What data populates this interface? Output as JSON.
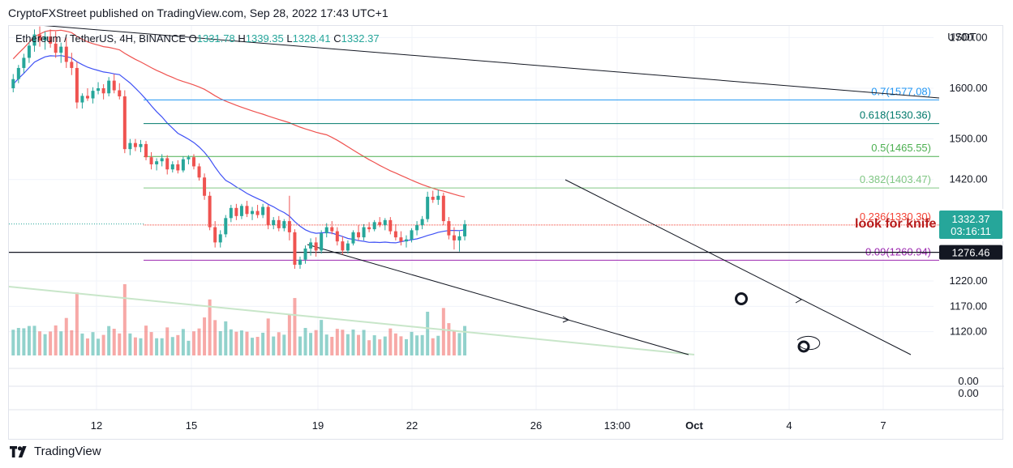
{
  "caption": "CryptoFXStreet published on TradingView.com, Sep 28, 2022 17:43 UTC+1",
  "footer": {
    "brand": "TradingView",
    "logo_icon": "tradingview-logo-icon"
  },
  "chart_data": {
    "type": "candlestick",
    "legend": {
      "symbol": "Ethereum / TetherUS, 4H, BINANCE",
      "o_label": "O",
      "o": "1331.78",
      "h_label": "H",
      "h": "1339.35",
      "l_label": "L",
      "l": "1328.41",
      "c_label": "C",
      "c": "1332.37"
    },
    "currency_label": "USDT",
    "y_ticks": [
      "1700.00",
      "1600.00",
      "1500.00",
      "1420.00",
      "1220.00",
      "1170.00",
      "1120.00"
    ],
    "volume_pane_ticks": [
      "0.00",
      "0.00"
    ],
    "x_ticks": [
      "12",
      "15",
      "19",
      "22",
      "26",
      "13:00",
      "Oct",
      "4",
      "7"
    ],
    "price_label": {
      "value": "1332.37",
      "countdown": "03:16:11",
      "color": "#26a69a"
    },
    "horizontal_level_label": "1276.46",
    "fib_levels": [
      {
        "ratio": "0.7",
        "price": "1577.08",
        "label": "0.7(1577.08)",
        "color": "#2196f3"
      },
      {
        "ratio": "0.618",
        "price": "1530.36",
        "label": "0.618(1530.36)",
        "color": "#00796b"
      },
      {
        "ratio": "0.5",
        "price": "1465.55",
        "label": "0.5(1465.55)",
        "color": "#4caf50"
      },
      {
        "ratio": "0.382",
        "price": "1403.47",
        "label": "0.382(1403.47)",
        "color": "#81c784"
      },
      {
        "ratio": "0.236",
        "price": "1330.30",
        "label": "0.236(1330.30)",
        "color": "#f44336"
      },
      {
        "ratio": "0.09",
        "price": "1260.94",
        "label": "0.09(1260.94)",
        "color": "#9c27b0"
      }
    ],
    "annotation": {
      "text": "look for knife",
      "color": "#b71c1c"
    },
    "ma_fast_color": "#3f51f5",
    "ma_slow_color": "#ef5350",
    "up_color": "#26a69a",
    "down_color": "#ef5350",
    "candles": [
      {
        "o": 1600,
        "h": 1628,
        "l": 1592,
        "c": 1618
      },
      {
        "o": 1618,
        "h": 1646,
        "l": 1610,
        "c": 1640
      },
      {
        "o": 1640,
        "h": 1668,
        "l": 1630,
        "c": 1660
      },
      {
        "o": 1660,
        "h": 1690,
        "l": 1650,
        "c": 1684
      },
      {
        "o": 1684,
        "h": 1716,
        "l": 1672,
        "c": 1706
      },
      {
        "o": 1706,
        "h": 1722,
        "l": 1682,
        "c": 1694
      },
      {
        "o": 1694,
        "h": 1712,
        "l": 1676,
        "c": 1702
      },
      {
        "o": 1702,
        "h": 1716,
        "l": 1680,
        "c": 1688
      },
      {
        "o": 1688,
        "h": 1712,
        "l": 1660,
        "c": 1670
      },
      {
        "o": 1670,
        "h": 1690,
        "l": 1650,
        "c": 1682
      },
      {
        "o": 1682,
        "h": 1700,
        "l": 1640,
        "c": 1652
      },
      {
        "o": 1652,
        "h": 1670,
        "l": 1626,
        "c": 1640
      },
      {
        "o": 1640,
        "h": 1652,
        "l": 1560,
        "c": 1572
      },
      {
        "o": 1572,
        "h": 1590,
        "l": 1560,
        "c": 1585
      },
      {
        "o": 1585,
        "h": 1600,
        "l": 1575,
        "c": 1580
      },
      {
        "o": 1580,
        "h": 1602,
        "l": 1570,
        "c": 1595
      },
      {
        "o": 1595,
        "h": 1612,
        "l": 1588,
        "c": 1600
      },
      {
        "o": 1600,
        "h": 1608,
        "l": 1578,
        "c": 1590
      },
      {
        "o": 1590,
        "h": 1622,
        "l": 1584,
        "c": 1615
      },
      {
        "o": 1615,
        "h": 1628,
        "l": 1590,
        "c": 1596
      },
      {
        "o": 1596,
        "h": 1610,
        "l": 1578,
        "c": 1584
      },
      {
        "o": 1584,
        "h": 1596,
        "l": 1472,
        "c": 1480
      },
      {
        "o": 1480,
        "h": 1500,
        "l": 1468,
        "c": 1492
      },
      {
        "o": 1492,
        "h": 1500,
        "l": 1476,
        "c": 1484
      },
      {
        "o": 1484,
        "h": 1498,
        "l": 1474,
        "c": 1490
      },
      {
        "o": 1490,
        "h": 1496,
        "l": 1458,
        "c": 1464
      },
      {
        "o": 1464,
        "h": 1474,
        "l": 1440,
        "c": 1450
      },
      {
        "o": 1450,
        "h": 1462,
        "l": 1438,
        "c": 1456
      },
      {
        "o": 1456,
        "h": 1470,
        "l": 1446,
        "c": 1462
      },
      {
        "o": 1462,
        "h": 1468,
        "l": 1430,
        "c": 1440
      },
      {
        "o": 1440,
        "h": 1456,
        "l": 1434,
        "c": 1450
      },
      {
        "o": 1450,
        "h": 1458,
        "l": 1432,
        "c": 1438
      },
      {
        "o": 1438,
        "h": 1466,
        "l": 1434,
        "c": 1460
      },
      {
        "o": 1460,
        "h": 1468,
        "l": 1450,
        "c": 1464
      },
      {
        "o": 1464,
        "h": 1470,
        "l": 1440,
        "c": 1446
      },
      {
        "o": 1446,
        "h": 1452,
        "l": 1418,
        "c": 1424
      },
      {
        "o": 1424,
        "h": 1432,
        "l": 1380,
        "c": 1388
      },
      {
        "o": 1388,
        "h": 1396,
        "l": 1320,
        "c": 1326
      },
      {
        "o": 1326,
        "h": 1338,
        "l": 1286,
        "c": 1296
      },
      {
        "o": 1296,
        "h": 1320,
        "l": 1286,
        "c": 1312
      },
      {
        "o": 1312,
        "h": 1350,
        "l": 1306,
        "c": 1344
      },
      {
        "o": 1344,
        "h": 1370,
        "l": 1336,
        "c": 1364
      },
      {
        "o": 1364,
        "h": 1372,
        "l": 1340,
        "c": 1348
      },
      {
        "o": 1348,
        "h": 1372,
        "l": 1342,
        "c": 1368
      },
      {
        "o": 1368,
        "h": 1378,
        "l": 1346,
        "c": 1352
      },
      {
        "o": 1352,
        "h": 1366,
        "l": 1340,
        "c": 1358
      },
      {
        "o": 1358,
        "h": 1370,
        "l": 1344,
        "c": 1350
      },
      {
        "o": 1350,
        "h": 1372,
        "l": 1344,
        "c": 1366
      },
      {
        "o": 1366,
        "h": 1370,
        "l": 1322,
        "c": 1330
      },
      {
        "o": 1330,
        "h": 1346,
        "l": 1322,
        "c": 1340
      },
      {
        "o": 1340,
        "h": 1348,
        "l": 1318,
        "c": 1324
      },
      {
        "o": 1324,
        "h": 1342,
        "l": 1318,
        "c": 1338
      },
      {
        "o": 1338,
        "h": 1388,
        "l": 1300,
        "c": 1316
      },
      {
        "o": 1316,
        "h": 1322,
        "l": 1244,
        "c": 1252
      },
      {
        "o": 1252,
        "h": 1268,
        "l": 1244,
        "c": 1262
      },
      {
        "o": 1262,
        "h": 1290,
        "l": 1254,
        "c": 1284
      },
      {
        "o": 1284,
        "h": 1304,
        "l": 1270,
        "c": 1296
      },
      {
        "o": 1296,
        "h": 1306,
        "l": 1268,
        "c": 1280
      },
      {
        "o": 1280,
        "h": 1320,
        "l": 1274,
        "c": 1314
      },
      {
        "o": 1314,
        "h": 1334,
        "l": 1306,
        "c": 1326
      },
      {
        "o": 1326,
        "h": 1338,
        "l": 1312,
        "c": 1318
      },
      {
        "o": 1318,
        "h": 1326,
        "l": 1290,
        "c": 1298
      },
      {
        "o": 1298,
        "h": 1308,
        "l": 1272,
        "c": 1280
      },
      {
        "o": 1280,
        "h": 1300,
        "l": 1274,
        "c": 1294
      },
      {
        "o": 1294,
        "h": 1320,
        "l": 1290,
        "c": 1316
      },
      {
        "o": 1316,
        "h": 1330,
        "l": 1300,
        "c": 1306
      },
      {
        "o": 1306,
        "h": 1332,
        "l": 1300,
        "c": 1326
      },
      {
        "o": 1326,
        "h": 1336,
        "l": 1316,
        "c": 1322
      },
      {
        "o": 1322,
        "h": 1340,
        "l": 1318,
        "c": 1336
      },
      {
        "o": 1336,
        "h": 1346,
        "l": 1326,
        "c": 1330
      },
      {
        "o": 1330,
        "h": 1344,
        "l": 1320,
        "c": 1340
      },
      {
        "o": 1340,
        "h": 1346,
        "l": 1312,
        "c": 1318
      },
      {
        "o": 1318,
        "h": 1332,
        "l": 1300,
        "c": 1306
      },
      {
        "o": 1306,
        "h": 1318,
        "l": 1290,
        "c": 1298
      },
      {
        "o": 1298,
        "h": 1310,
        "l": 1286,
        "c": 1302
      },
      {
        "o": 1302,
        "h": 1324,
        "l": 1296,
        "c": 1320
      },
      {
        "o": 1320,
        "h": 1338,
        "l": 1310,
        "c": 1330
      },
      {
        "o": 1330,
        "h": 1348,
        "l": 1322,
        "c": 1342
      },
      {
        "o": 1342,
        "h": 1396,
        "l": 1336,
        "c": 1386
      },
      {
        "o": 1386,
        "h": 1398,
        "l": 1374,
        "c": 1380
      },
      {
        "o": 1380,
        "h": 1400,
        "l": 1370,
        "c": 1388
      },
      {
        "o": 1388,
        "h": 1394,
        "l": 1330,
        "c": 1338
      },
      {
        "o": 1338,
        "h": 1346,
        "l": 1302,
        "c": 1310
      },
      {
        "o": 1310,
        "h": 1326,
        "l": 1282,
        "c": 1300
      },
      {
        "o": 1300,
        "h": 1318,
        "l": 1278,
        "c": 1308
      },
      {
        "o": 1308,
        "h": 1340,
        "l": 1300,
        "c": 1332
      }
    ]
  }
}
